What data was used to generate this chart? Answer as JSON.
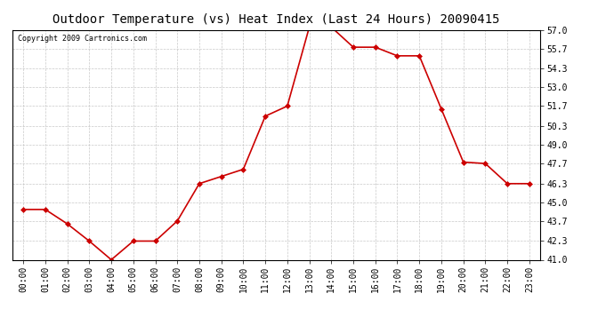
{
  "title": "Outdoor Temperature (vs) Heat Index (Last 24 Hours) 20090415",
  "copyright_text": "Copyright 2009 Cartronics.com",
  "x_labels": [
    "00:00",
    "01:00",
    "02:00",
    "03:00",
    "04:00",
    "05:00",
    "06:00",
    "07:00",
    "08:00",
    "09:00",
    "10:00",
    "11:00",
    "12:00",
    "13:00",
    "14:00",
    "15:00",
    "16:00",
    "17:00",
    "18:00",
    "19:00",
    "20:00",
    "21:00",
    "22:00",
    "23:00"
  ],
  "y_values": [
    44.5,
    44.5,
    43.5,
    42.3,
    41.0,
    42.3,
    42.3,
    43.7,
    46.3,
    46.8,
    47.3,
    51.0,
    51.7,
    57.2,
    57.2,
    55.8,
    55.8,
    55.2,
    55.2,
    51.5,
    47.8,
    47.7,
    46.3,
    46.3
  ],
  "line_color": "#cc0000",
  "marker": "D",
  "marker_size": 3,
  "background_color": "#ffffff",
  "plot_bg_color": "#ffffff",
  "grid_color": "#bbbbbb",
  "y_min": 41.0,
  "y_max": 57.0,
  "y_ticks": [
    41.0,
    42.3,
    43.7,
    45.0,
    46.3,
    47.7,
    49.0,
    50.3,
    51.7,
    53.0,
    54.3,
    55.7,
    57.0
  ],
  "title_fontsize": 10,
  "copyright_fontsize": 6,
  "tick_fontsize": 7
}
